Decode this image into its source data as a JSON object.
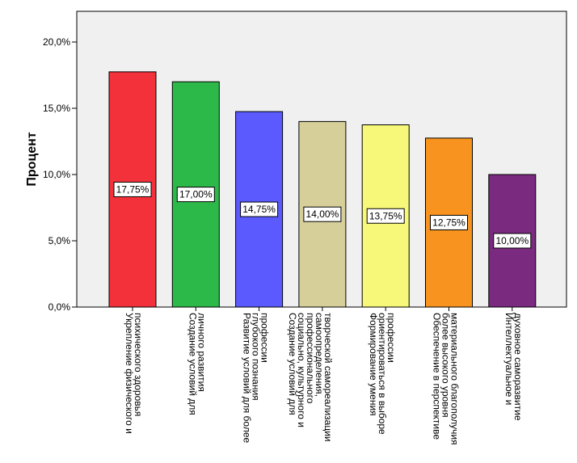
{
  "chart_data": {
    "type": "bar",
    "ylabel": "Процент",
    "ylim": [
      0,
      22
    ],
    "yticks": [
      0,
      5,
      10,
      15,
      20
    ],
    "ytick_labels": [
      "0,0%",
      "5,0%",
      "10,0%",
      "15,0%",
      "20,0%"
    ],
    "grid": false,
    "categories": [
      [
        "Укрепление физического и",
        "психического здоровья"
      ],
      [
        "Создание условий для",
        "личного развития"
      ],
      [
        "Развитие условий для более",
        "глубокого познания",
        "профессии"
      ],
      [
        "Создание условий для",
        "социально, культурного и",
        "профессионального",
        "самоопределения,",
        "творческой самореализации"
      ],
      [
        "Формирование умения",
        "ориентироваться в выборе",
        "профессии"
      ],
      [
        "Обеспечение в перспективе",
        "более высокого уровня",
        "материального благополучия"
      ],
      [
        "Интеллектуальное и",
        "духовное саморазвитие"
      ]
    ],
    "values": [
      17.75,
      17.0,
      14.75,
      14.0,
      13.75,
      12.75,
      10.0
    ],
    "value_labels": [
      "17,75%",
      "17,00%",
      "14,75%",
      "14,00%",
      "13,75%",
      "12,75%",
      "10,00%"
    ],
    "colors": [
      "#f2313a",
      "#2db84a",
      "#5a5aff",
      "#d6cf9a",
      "#f7f779",
      "#f7931e",
      "#7a2a7f"
    ],
    "plot_background": "#f0f0f0"
  }
}
